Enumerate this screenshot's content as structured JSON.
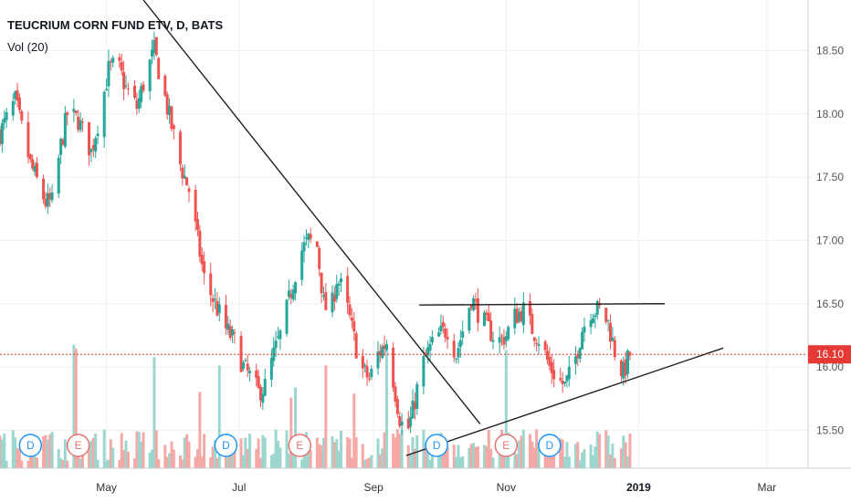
{
  "header": {
    "title": "TEUCRIUM CORN FUND ETV, D, BATS",
    "indicator": "Vol (20)"
  },
  "colors": {
    "up": "#26a69a",
    "down": "#ef5350",
    "up_volume": "#9bd7cf",
    "down_volume": "#f5a9a6",
    "current_price_line": "#e53935",
    "grid": "#eef0f3",
    "trendline": "#202020",
    "dividend_marker": "#2196f3",
    "earnings_marker": "#e57373"
  },
  "current_price": {
    "value": 16.1,
    "label": "16.10"
  },
  "chart_data": {
    "type": "candlestick",
    "title": "TEUCRIUM CORN FUND ETV, D, BATS",
    "ylim": [
      15.2,
      18.9
    ],
    "xlim": [
      "2018-03-13",
      "2019-03-20"
    ],
    "y_ticks": [
      {
        "value": 15.5,
        "label": "15.50"
      },
      {
        "value": 16.0,
        "label": "16.00"
      },
      {
        "value": 16.5,
        "label": "16.50"
      },
      {
        "value": 17.0,
        "label": "17.00"
      },
      {
        "value": 17.5,
        "label": "17.50"
      },
      {
        "value": 18.0,
        "label": "18.00"
      },
      {
        "value": 18.5,
        "label": "18.50"
      }
    ],
    "x_ticks": [
      {
        "date": "2018-05-01",
        "label": "May",
        "bold": false
      },
      {
        "date": "2018-07-01",
        "label": "Jul",
        "bold": false
      },
      {
        "date": "2018-09-01",
        "label": "Sep",
        "bold": false
      },
      {
        "date": "2018-11-01",
        "label": "Nov",
        "bold": false
      },
      {
        "date": "2019-01-01",
        "label": "2019",
        "bold": true
      },
      {
        "date": "2019-03-01",
        "label": "Mar",
        "bold": false
      }
    ],
    "grid": true,
    "price_path": [
      [
        "2018-03-13",
        17.85
      ],
      [
        "2018-03-20",
        18.1
      ],
      [
        "2018-03-27",
        17.6
      ],
      [
        "2018-04-03",
        17.3
      ],
      [
        "2018-04-06",
        17.3
      ],
      [
        "2018-04-10",
        17.75
      ],
      [
        "2018-04-13",
        18.0
      ],
      [
        "2018-04-18",
        17.95
      ],
      [
        "2018-04-24",
        17.7
      ],
      [
        "2018-04-28",
        18.0
      ],
      [
        "2018-05-02",
        18.35
      ],
      [
        "2018-05-06",
        18.4
      ],
      [
        "2018-05-10",
        18.2
      ],
      [
        "2018-05-15",
        18.05
      ],
      [
        "2018-05-19",
        18.3
      ],
      [
        "2018-05-23",
        18.5
      ],
      [
        "2018-05-27",
        18.2
      ],
      [
        "2018-05-31",
        17.9
      ],
      [
        "2018-06-04",
        17.6
      ],
      [
        "2018-06-08",
        17.4
      ],
      [
        "2018-06-12",
        17.0
      ],
      [
        "2018-06-15",
        16.7
      ],
      [
        "2018-06-20",
        16.5
      ],
      [
        "2018-06-25",
        16.3
      ],
      [
        "2018-06-29",
        16.2
      ],
      [
        "2018-07-03",
        16.0
      ],
      [
        "2018-07-07",
        15.9
      ],
      [
        "2018-07-10",
        15.8
      ],
      [
        "2018-07-13",
        15.85
      ],
      [
        "2018-07-17",
        16.1
      ],
      [
        "2018-07-21",
        16.3
      ],
      [
        "2018-07-25",
        16.6
      ],
      [
        "2018-07-29",
        16.9
      ],
      [
        "2018-08-02",
        17.0
      ],
      [
        "2018-08-06",
        16.95
      ],
      [
        "2018-08-09",
        16.5
      ],
      [
        "2018-08-12",
        16.4
      ],
      [
        "2018-08-15",
        16.7
      ],
      [
        "2018-08-18",
        16.6
      ],
      [
        "2018-08-22",
        16.3
      ],
      [
        "2018-08-26",
        16.0
      ],
      [
        "2018-08-30",
        15.9
      ],
      [
        "2018-09-03",
        16.1
      ],
      [
        "2018-09-07",
        16.2
      ],
      [
        "2018-09-10",
        15.9
      ],
      [
        "2018-09-13",
        15.6
      ],
      [
        "2018-09-16",
        15.45
      ],
      [
        "2018-09-19",
        15.65
      ],
      [
        "2018-09-23",
        16.0
      ],
      [
        "2018-09-27",
        16.15
      ],
      [
        "2018-10-01",
        16.25
      ],
      [
        "2018-10-05",
        16.3
      ],
      [
        "2018-10-09",
        16.1
      ],
      [
        "2018-10-13",
        16.35
      ],
      [
        "2018-10-16",
        16.55
      ],
      [
        "2018-10-20",
        16.4
      ],
      [
        "2018-10-24",
        16.3
      ],
      [
        "2018-10-28",
        16.2
      ],
      [
        "2018-11-01",
        16.25
      ],
      [
        "2018-11-05",
        16.4
      ],
      [
        "2018-11-09",
        16.45
      ],
      [
        "2018-11-13",
        16.3
      ],
      [
        "2018-11-17",
        16.2
      ],
      [
        "2018-11-21",
        16.0
      ],
      [
        "2018-11-25",
        15.9
      ],
      [
        "2018-11-28",
        15.85
      ],
      [
        "2018-12-02",
        16.0
      ],
      [
        "2018-12-06",
        16.3
      ],
      [
        "2018-12-10",
        16.45
      ],
      [
        "2018-12-14",
        16.45
      ],
      [
        "2018-12-18",
        16.35
      ],
      [
        "2018-12-22",
        16.05
      ],
      [
        "2018-12-25",
        15.95
      ],
      [
        "2018-12-28",
        16.1
      ]
    ],
    "trendlines": [
      {
        "from": [
          "2018-05-18",
          18.9
        ],
        "to": [
          "2018-10-20",
          15.55
        ]
      },
      {
        "from": [
          "2018-09-16",
          15.3
        ],
        "to": [
          "2019-02-09",
          16.15
        ]
      },
      {
        "from": [
          "2018-09-22",
          16.49
        ],
        "to": [
          "2019-01-13",
          16.5
        ]
      }
    ],
    "events": [
      {
        "date": "2018-03-27",
        "type": "D"
      },
      {
        "date": "2018-04-18",
        "type": "E"
      },
      {
        "date": "2018-06-25",
        "type": "D"
      },
      {
        "date": "2018-07-29",
        "type": "E"
      },
      {
        "date": "2018-09-30",
        "type": "D"
      },
      {
        "date": "2018-11-01",
        "type": "E"
      },
      {
        "date": "2018-11-21",
        "type": "D"
      }
    ]
  }
}
